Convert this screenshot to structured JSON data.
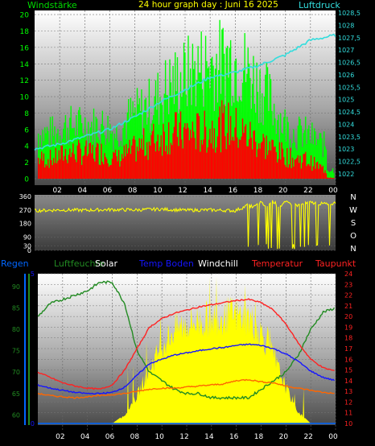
{
  "header": {
    "wind_label": "Windstärke",
    "title": "24 hour graph day : Juni 16 2025",
    "pressure_label": "Luftdruck"
  },
  "legend": {
    "regen": "Regen",
    "luftfeuchte": "Luftfeuchte",
    "solar": "Solar",
    "temp_boden": "Temp Boden",
    "windchill": "Windchill",
    "temperatur": "Temperatur",
    "taupunkt": "Taupunkt"
  },
  "compass": [
    "N",
    "W",
    "S",
    "O",
    "N"
  ],
  "colors": {
    "wind": "#00ff00",
    "gust": "#ff0000",
    "pressure": "#33dddd",
    "direction": "#ffff00",
    "humidity": "#228b22",
    "solar": "#ffff00",
    "ground_temp": "#1515ff",
    "windchill": "#ffffff",
    "temperature": "#ff2222",
    "dewpoint": "#ff6600",
    "rain": "#0066ff"
  },
  "chart_data": [
    {
      "type": "bar",
      "title": "24 hour graph day : Juni 16 2025",
      "xticks": [
        "02",
        "04",
        "06",
        "08",
        "10",
        "12",
        "14",
        "16",
        "18",
        "20",
        "22",
        "00"
      ],
      "left_axis": {
        "label": "Windstärke",
        "ticks": [
          0,
          2,
          4,
          6,
          8,
          10,
          12,
          14,
          16,
          18,
          20
        ],
        "range": [
          0,
          20.5
        ]
      },
      "right_axis": {
        "label": "Luftdruck",
        "ticks": [
          "1022",
          "1022,5",
          "1023",
          "1023,5",
          "1024",
          "1024,5",
          "1025",
          "1025,5",
          "1026",
          "1026,5",
          "1027",
          "1027,5",
          "1028",
          "1028,5"
        ],
        "range": [
          1021.8,
          1028.6
        ]
      },
      "wind_hourly": {
        "x": [
          1,
          2,
          3,
          4,
          5,
          6,
          7,
          8,
          9,
          10,
          11,
          12,
          13,
          14,
          15,
          16,
          17,
          18,
          19,
          20,
          21,
          22,
          23,
          24
        ],
        "gust": [
          6,
          6,
          7,
          7,
          7,
          7,
          6,
          8,
          9,
          10,
          12,
          13,
          14,
          15,
          15,
          16,
          15,
          13,
          11,
          8,
          6,
          6,
          5,
          4
        ],
        "mean": [
          3,
          3,
          4,
          4,
          4,
          4,
          3,
          4,
          5,
          6,
          7,
          7,
          7,
          7,
          8,
          8,
          7,
          6,
          5,
          4,
          3,
          3,
          2,
          1
        ]
      },
      "pressure": {
        "x": [
          0,
          2,
          4,
          6,
          8,
          10,
          12,
          14,
          16,
          18,
          20,
          22,
          24
        ],
        "values": [
          1023.0,
          1023.2,
          1023.5,
          1023.8,
          1024.3,
          1024.9,
          1025.4,
          1025.9,
          1026.1,
          1026.4,
          1026.8,
          1027.4,
          1027.6
        ]
      }
    },
    {
      "type": "scatter",
      "left_axis": {
        "ticks": [
          0,
          30,
          90,
          180,
          270,
          360
        ],
        "range": [
          0,
          360
        ]
      },
      "direction": {
        "x": [
          0,
          2,
          4,
          6,
          8,
          10,
          12,
          14,
          16,
          17,
          17.5,
          18,
          18.5,
          19,
          19.5,
          20,
          21,
          22,
          23,
          24
        ],
        "values": [
          265,
          270,
          268,
          272,
          270,
          275,
          268,
          270,
          265,
          300,
          60,
          320,
          40,
          330,
          70,
          320,
          300,
          320,
          310,
          315
        ]
      }
    },
    {
      "type": "line",
      "humidity_axis": {
        "ticks": [
          60,
          65,
          70,
          75,
          80,
          85,
          90
        ],
        "range": [
          58,
          93
        ]
      },
      "solar_axis": {
        "ticks": [
          0,
          5
        ],
        "range": [
          0,
          5
        ]
      },
      "temp_axis": {
        "ticks": [
          10,
          11,
          12,
          13,
          14,
          15,
          16,
          17,
          18,
          19,
          20,
          21,
          22,
          23,
          24
        ],
        "range": [
          10,
          24
        ]
      },
      "x": [
        0,
        1,
        2,
        3,
        4,
        5,
        6,
        7,
        8,
        9,
        10,
        11,
        12,
        13,
        14,
        15,
        16,
        17,
        18,
        19,
        20,
        21,
        22,
        23,
        24
      ],
      "series": [
        {
          "name": "Luftfeuchte",
          "values": [
            83,
            86,
            87,
            88,
            89,
            91,
            91,
            86,
            75,
            70,
            68,
            66,
            65,
            65,
            64,
            64,
            64,
            64,
            66,
            68,
            70,
            74,
            80,
            84,
            85
          ]
        },
        {
          "name": "Temperatur",
          "values": [
            14.8,
            14.3,
            13.8,
            13.5,
            13.3,
            13.2,
            13.6,
            15.0,
            17.0,
            19.0,
            19.8,
            20.3,
            20.6,
            20.9,
            21.1,
            21.3,
            21.5,
            21.6,
            21.3,
            20.6,
            19.3,
            17.5,
            16.0,
            15.2,
            14.9
          ]
        },
        {
          "name": "Temp Boden",
          "values": [
            13.6,
            13.3,
            13.1,
            12.9,
            12.8,
            12.8,
            12.9,
            13.4,
            14.5,
            15.6,
            16.0,
            16.4,
            16.6,
            16.8,
            17.0,
            17.1,
            17.3,
            17.4,
            17.3,
            17.0,
            16.5,
            15.8,
            14.9,
            14.3,
            14.0
          ]
        },
        {
          "name": "Taupunkt",
          "values": [
            12.8,
            12.6,
            12.5,
            12.4,
            12.5,
            12.6,
            12.7,
            12.8,
            13.0,
            13.2,
            13.3,
            13.3,
            13.4,
            13.5,
            13.6,
            13.7,
            14.0,
            14.1,
            13.9,
            13.8,
            13.5,
            13.3,
            13.1,
            12.9,
            12.8
          ]
        },
        {
          "name": "Solar",
          "values": [
            0,
            0,
            0,
            0,
            0,
            0,
            0,
            0.3,
            1.0,
            2.0,
            2.8,
            3.4,
            3.6,
            3.7,
            3.8,
            3.9,
            3.9,
            3.8,
            3.3,
            2.4,
            1.3,
            0.4,
            0,
            0,
            0
          ]
        }
      ]
    }
  ]
}
